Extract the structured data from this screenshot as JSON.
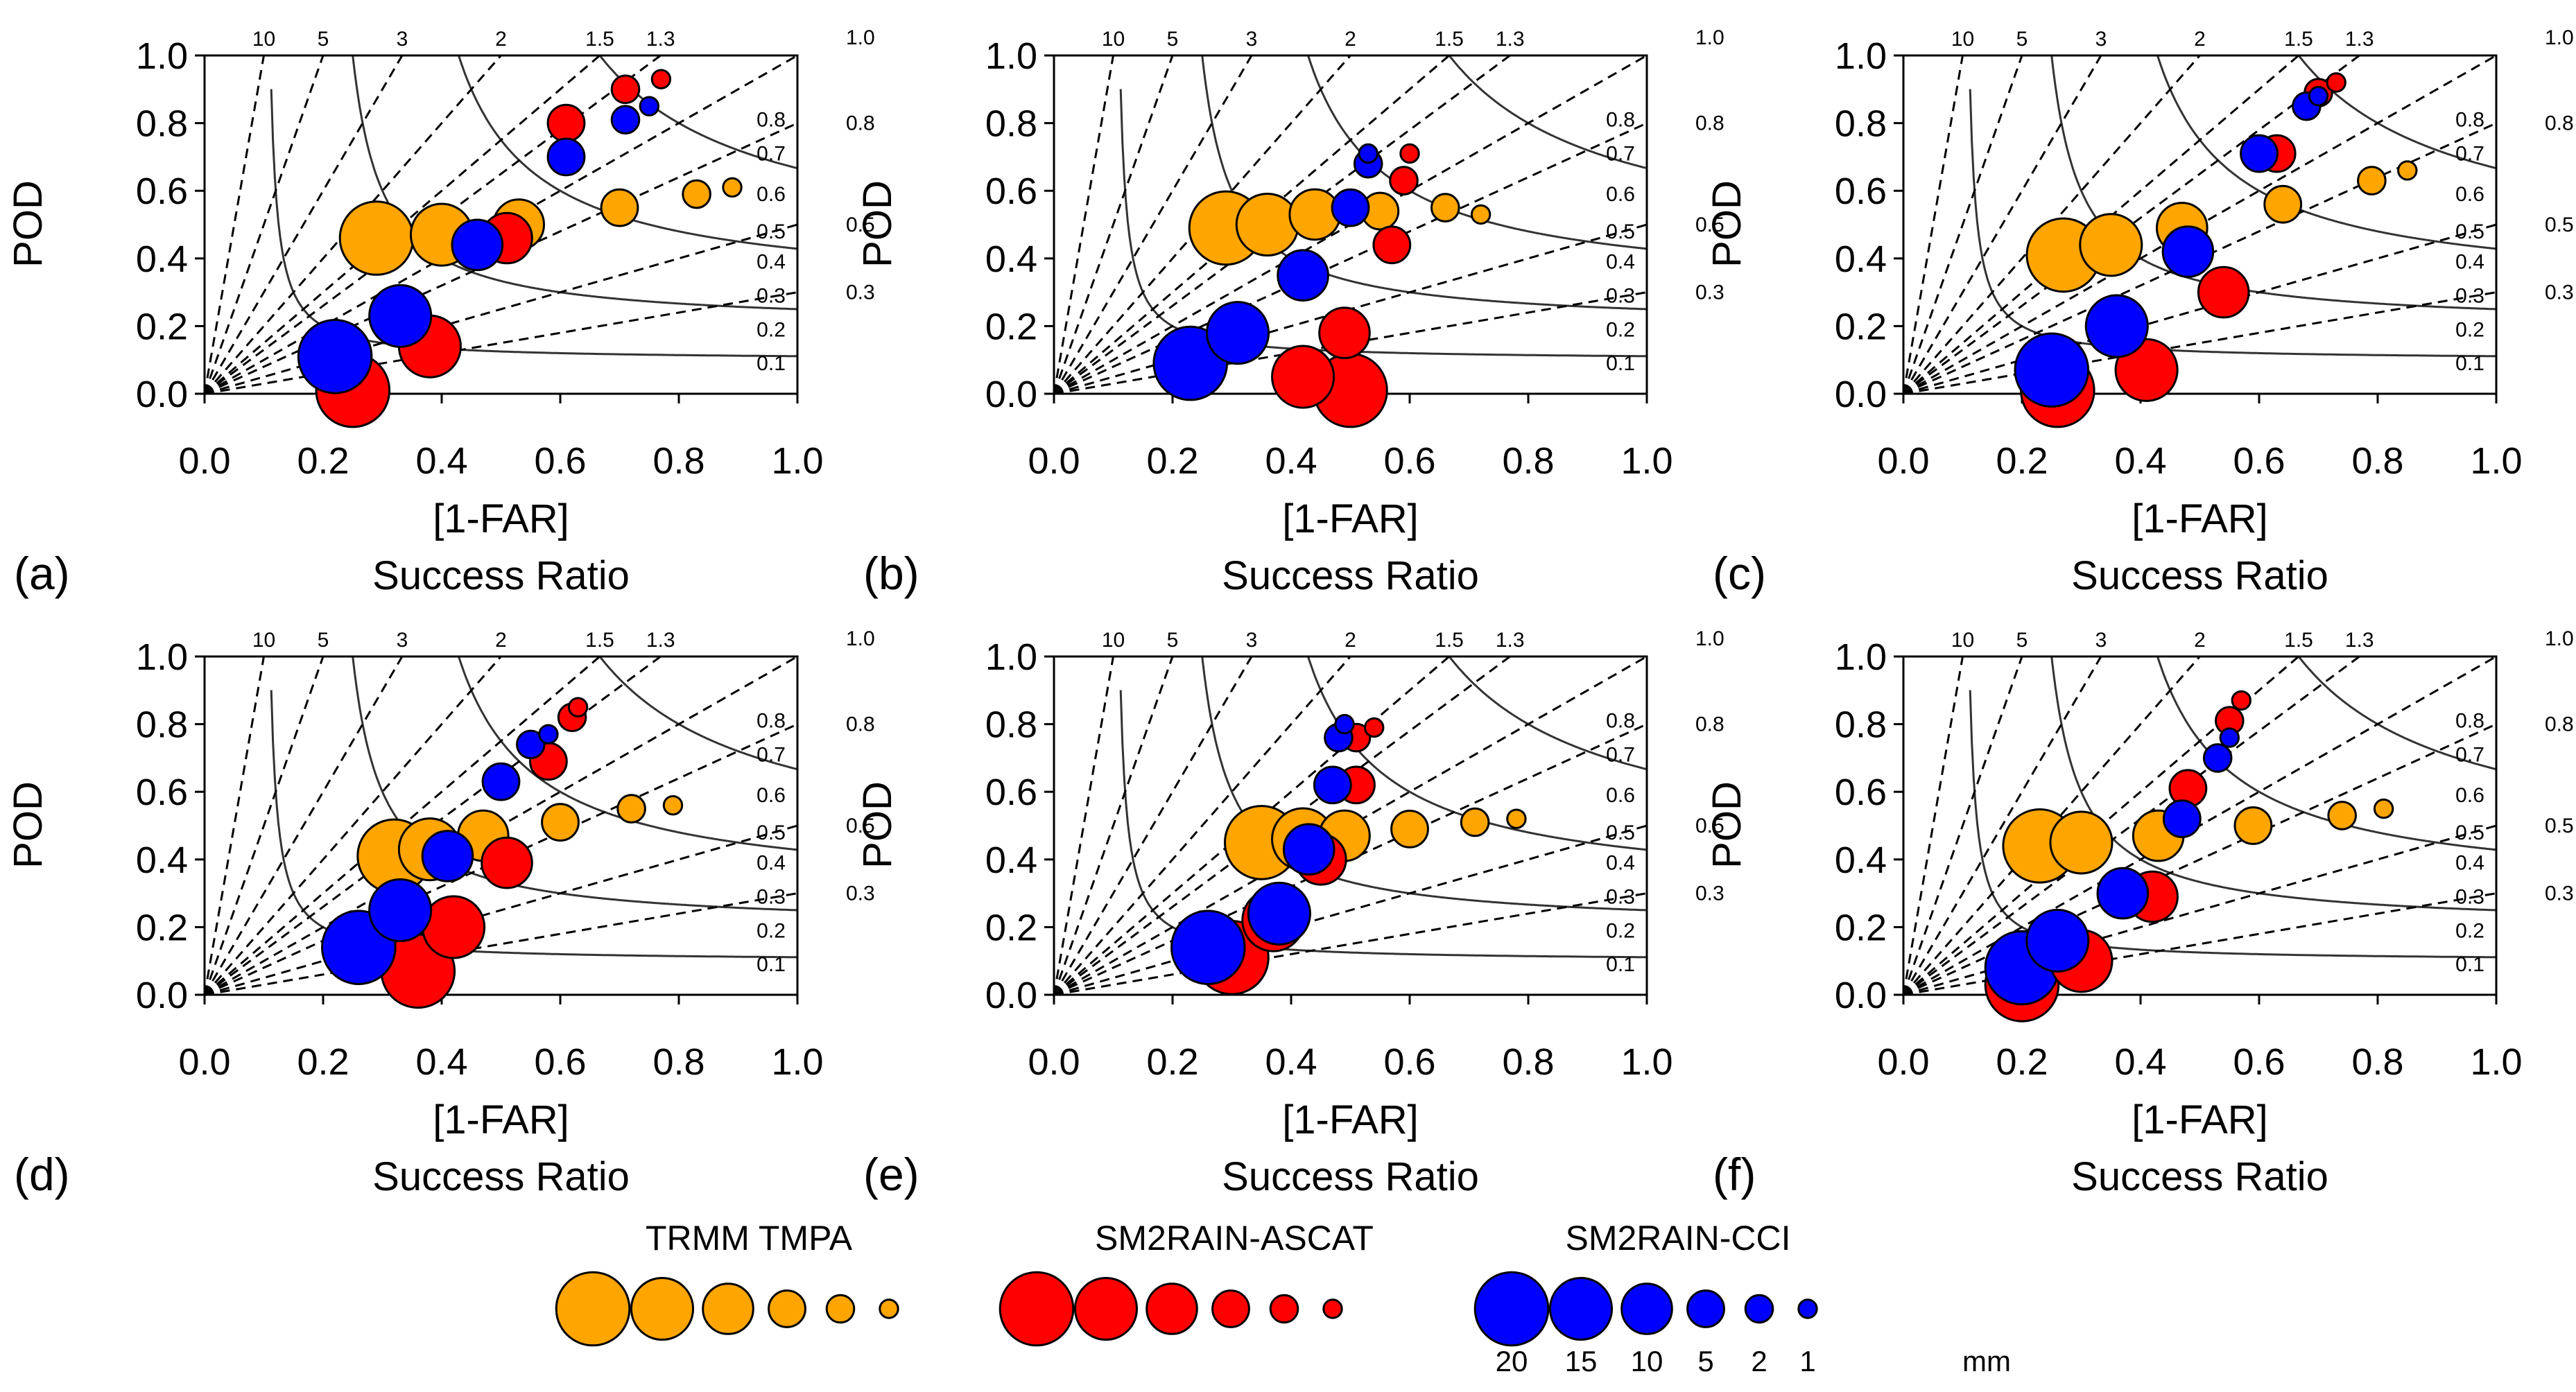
{
  "figure": {
    "xlabel_line1": "[1-FAR]",
    "xlabel_line2": "Success Ratio",
    "ylabel": "POD",
    "x_ticks": [
      "0.0",
      "0.2",
      "0.4",
      "0.6",
      "0.8",
      "1.0"
    ],
    "y_ticks": [
      "0.0",
      "0.2",
      "0.4",
      "0.6",
      "0.8",
      "1.0"
    ],
    "bias_labels": [
      "10",
      "5",
      "3",
      "2",
      "1.5",
      "1.3",
      "1.0"
    ],
    "csi_labels_inner": [
      "0.8",
      "0.7",
      "0.6",
      "0.5",
      "0.4",
      "0.3",
      "0.2",
      "0.1"
    ],
    "csi_labels_outer": [
      "1.0",
      "0.8",
      "0.5",
      "0.3"
    ],
    "csi_outer_values": [
      1.0,
      0.8,
      0.5,
      0.3
    ],
    "colors": {
      "TRMM TMPA": "#FFA500",
      "SM2RAIN-ASCAT": "#FF0000",
      "SM2RAIN-CCI": "#0000FF"
    }
  },
  "legend": {
    "products": [
      "TRMM TMPA",
      "SM2RAIN-ASCAT",
      "SM2RAIN-CCI"
    ],
    "thresholds": [
      "20",
      "15",
      "10",
      "5",
      "2",
      "1"
    ],
    "unit": "mm"
  },
  "chart_data": [
    {
      "type": "scatter",
      "panel": "(a)",
      "xlim": [
        0,
        1
      ],
      "ylim": [
        0,
        1
      ],
      "xlabel": "[1-FAR] Success Ratio",
      "ylabel": "POD",
      "series": [
        {
          "name": "TRMM TMPA",
          "thresholds_mm": [
            20,
            15,
            10,
            5,
            2,
            1
          ],
          "x": [
            0.29,
            0.4,
            0.53,
            0.7,
            0.83,
            0.89
          ],
          "y": [
            0.46,
            0.47,
            0.5,
            0.55,
            0.59,
            0.61
          ]
        },
        {
          "name": "SM2RAIN-ASCAT",
          "thresholds_mm": [
            20,
            15,
            10,
            5,
            2,
            1
          ],
          "x": [
            0.25,
            0.38,
            0.51,
            0.61,
            0.71,
            0.77
          ],
          "y": [
            0.01,
            0.14,
            0.46,
            0.8,
            0.9,
            0.93
          ]
        },
        {
          "name": "SM2RAIN-CCI",
          "thresholds_mm": [
            20,
            15,
            10,
            5,
            2,
            1
          ],
          "x": [
            0.22,
            0.33,
            0.46,
            0.61,
            0.71,
            0.75
          ],
          "y": [
            0.11,
            0.23,
            0.44,
            0.7,
            0.81,
            0.85
          ]
        }
      ]
    },
    {
      "type": "scatter",
      "panel": "(b)",
      "xlim": [
        0,
        1
      ],
      "ylim": [
        0,
        1
      ],
      "xlabel": "[1-FAR] Success Ratio",
      "ylabel": "POD",
      "series": [
        {
          "name": "TRMM TMPA",
          "thresholds_mm": [
            20,
            15,
            10,
            5,
            2,
            1
          ],
          "x": [
            0.29,
            0.36,
            0.44,
            0.55,
            0.66,
            0.72
          ],
          "y": [
            0.49,
            0.5,
            0.53,
            0.54,
            0.55,
            0.53
          ]
        },
        {
          "name": "SM2RAIN-ASCAT",
          "thresholds_mm": [
            20,
            15,
            10,
            5,
            2,
            1
          ],
          "x": [
            0.5,
            0.42,
            0.49,
            0.57,
            0.59,
            0.6
          ],
          "y": [
            0.01,
            0.05,
            0.18,
            0.44,
            0.63,
            0.71
          ]
        },
        {
          "name": "SM2RAIN-CCI",
          "thresholds_mm": [
            20,
            15,
            10,
            5,
            2,
            1
          ],
          "x": [
            0.23,
            0.31,
            0.42,
            0.5,
            0.53,
            0.53
          ],
          "y": [
            0.09,
            0.18,
            0.35,
            0.55,
            0.68,
            0.71
          ]
        }
      ]
    },
    {
      "type": "scatter",
      "panel": "(c)",
      "xlim": [
        0,
        1
      ],
      "ylim": [
        0,
        1
      ],
      "xlabel": "[1-FAR] Success Ratio",
      "ylabel": "POD",
      "series": [
        {
          "name": "TRMM TMPA",
          "thresholds_mm": [
            20,
            15,
            10,
            5,
            2,
            1
          ],
          "x": [
            0.27,
            0.35,
            0.47,
            0.64,
            0.79,
            0.85
          ],
          "y": [
            0.41,
            0.44,
            0.49,
            0.56,
            0.63,
            0.66
          ]
        },
        {
          "name": "SM2RAIN-ASCAT",
          "thresholds_mm": [
            20,
            15,
            10,
            5,
            2,
            1
          ],
          "x": [
            0.26,
            0.41,
            0.54,
            0.63,
            0.7,
            0.73
          ],
          "y": [
            0.01,
            0.07,
            0.3,
            0.71,
            0.89,
            0.92
          ]
        },
        {
          "name": "SM2RAIN-CCI",
          "thresholds_mm": [
            20,
            15,
            10,
            5,
            2,
            1
          ],
          "x": [
            0.25,
            0.36,
            0.48,
            0.6,
            0.68,
            0.7
          ],
          "y": [
            0.07,
            0.2,
            0.42,
            0.71,
            0.85,
            0.88
          ]
        }
      ]
    },
    {
      "type": "scatter",
      "panel": "(d)",
      "xlim": [
        0,
        1
      ],
      "ylim": [
        0,
        1
      ],
      "xlabel": "[1-FAR] Success Ratio",
      "ylabel": "POD",
      "series": [
        {
          "name": "TRMM TMPA",
          "thresholds_mm": [
            20,
            15,
            10,
            5,
            2,
            1
          ],
          "x": [
            0.32,
            0.38,
            0.47,
            0.6,
            0.72,
            0.79
          ],
          "y": [
            0.41,
            0.43,
            0.47,
            0.51,
            0.55,
            0.56
          ]
        },
        {
          "name": "SM2RAIN-ASCAT",
          "thresholds_mm": [
            20,
            15,
            10,
            5,
            2,
            1
          ],
          "x": [
            0.36,
            0.42,
            0.51,
            0.58,
            0.62,
            0.63
          ],
          "y": [
            0.07,
            0.2,
            0.39,
            0.69,
            0.82,
            0.85
          ]
        },
        {
          "name": "SM2RAIN-CCI",
          "thresholds_mm": [
            20,
            15,
            10,
            5,
            2,
            1
          ],
          "x": [
            0.26,
            0.33,
            0.41,
            0.5,
            0.55,
            0.58
          ],
          "y": [
            0.14,
            0.25,
            0.41,
            0.63,
            0.74,
            0.77
          ]
        }
      ]
    },
    {
      "type": "scatter",
      "panel": "(e)",
      "xlim": [
        0,
        1
      ],
      "ylim": [
        0,
        1
      ],
      "xlabel": "[1-FAR] Success Ratio",
      "ylabel": "POD",
      "series": [
        {
          "name": "TRMM TMPA",
          "thresholds_mm": [
            20,
            15,
            10,
            5,
            2,
            1
          ],
          "x": [
            0.35,
            0.42,
            0.49,
            0.6,
            0.71,
            0.78
          ],
          "y": [
            0.45,
            0.46,
            0.47,
            0.49,
            0.51,
            0.52
          ]
        },
        {
          "name": "SM2RAIN-ASCAT",
          "thresholds_mm": [
            20,
            15,
            10,
            5,
            2,
            1
          ],
          "x": [
            0.3,
            0.37,
            0.45,
            0.51,
            0.51,
            0.54
          ],
          "y": [
            0.11,
            0.22,
            0.4,
            0.62,
            0.76,
            0.79
          ]
        },
        {
          "name": "SM2RAIN-CCI",
          "thresholds_mm": [
            20,
            15,
            10,
            5,
            2,
            1
          ],
          "x": [
            0.26,
            0.38,
            0.43,
            0.47,
            0.48,
            0.49
          ],
          "y": [
            0.14,
            0.24,
            0.43,
            0.62,
            0.76,
            0.8
          ]
        }
      ]
    },
    {
      "type": "scatter",
      "panel": "(f)",
      "xlim": [
        0,
        1
      ],
      "ylim": [
        0,
        1
      ],
      "xlabel": "[1-FAR] Success Ratio",
      "ylabel": "POD",
      "series": [
        {
          "name": "TRMM TMPA",
          "thresholds_mm": [
            20,
            15,
            10,
            5,
            2,
            1
          ],
          "x": [
            0.23,
            0.3,
            0.43,
            0.59,
            0.74,
            0.81
          ],
          "y": [
            0.44,
            0.45,
            0.47,
            0.5,
            0.53,
            0.55
          ]
        },
        {
          "name": "SM2RAIN-ASCAT",
          "thresholds_mm": [
            20,
            15,
            10,
            5,
            2,
            1
          ],
          "x": [
            0.2,
            0.3,
            0.42,
            0.48,
            0.55,
            0.57
          ],
          "y": [
            0.03,
            0.1,
            0.29,
            0.61,
            0.81,
            0.87
          ]
        },
        {
          "name": "SM2RAIN-CCI",
          "thresholds_mm": [
            20,
            15,
            10,
            5,
            2,
            1
          ],
          "x": [
            0.2,
            0.26,
            0.37,
            0.47,
            0.53,
            0.55
          ],
          "y": [
            0.08,
            0.16,
            0.3,
            0.52,
            0.7,
            0.76
          ]
        }
      ]
    }
  ]
}
